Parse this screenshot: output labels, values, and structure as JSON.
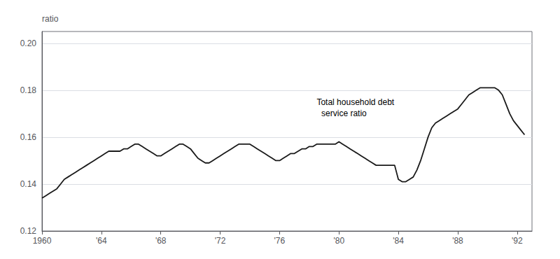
{
  "chart_data": {
    "type": "line",
    "title": "",
    "ylabel": "ratio",
    "annotation": {
      "text": "Total household debt\n  service ratio",
      "x": 1978.5,
      "y": 0.1725
    },
    "color": "#1a1a1a",
    "grid": true,
    "xlim": [
      1960,
      1993
    ],
    "ylim": [
      0.12,
      0.205
    ],
    "xticks": [
      1960,
      {
        "value": 1964,
        "label": "'64"
      },
      {
        "value": 1968,
        "label": "'68"
      },
      {
        "value": 1972,
        "label": "'72"
      },
      {
        "value": 1976,
        "label": "'76"
      },
      {
        "value": 1980,
        "label": "'80"
      },
      {
        "value": 1984,
        "label": "'84"
      },
      {
        "value": 1988,
        "label": "'88"
      },
      {
        "value": 1992,
        "label": "'92"
      }
    ],
    "yticks": [
      0.12,
      0.14,
      0.16,
      0.18,
      {
        "value": 0.2,
        "label": "0.20"
      }
    ],
    "x": [
      1960,
      1960.25,
      1960.5,
      1960.75,
      1961,
      1961.25,
      1961.5,
      1961.75,
      1962,
      1962.25,
      1962.5,
      1962.75,
      1963,
      1963.25,
      1963.5,
      1963.75,
      1964,
      1964.25,
      1964.5,
      1964.75,
      1965,
      1965.25,
      1965.5,
      1965.75,
      1966,
      1966.25,
      1966.5,
      1966.75,
      1967,
      1967.25,
      1967.5,
      1967.75,
      1968,
      1968.25,
      1968.5,
      1968.75,
      1969,
      1969.25,
      1969.5,
      1969.75,
      1970,
      1970.25,
      1970.5,
      1970.75,
      1971,
      1971.25,
      1971.5,
      1971.75,
      1972,
      1972.25,
      1972.5,
      1972.75,
      1973,
      1973.25,
      1973.5,
      1973.75,
      1974,
      1974.25,
      1974.5,
      1974.75,
      1975,
      1975.25,
      1975.5,
      1975.75,
      1976,
      1976.25,
      1976.5,
      1976.75,
      1977,
      1977.25,
      1977.5,
      1977.75,
      1978,
      1978.25,
      1978.5,
      1978.75,
      1979,
      1979.25,
      1979.5,
      1979.75,
      1980,
      1980.25,
      1980.5,
      1980.75,
      1981,
      1981.25,
      1981.5,
      1981.75,
      1982,
      1982.25,
      1982.5,
      1982.75,
      1983,
      1983.25,
      1983.5,
      1983.75,
      1984,
      1984.25,
      1984.5,
      1984.75,
      1985,
      1985.25,
      1985.5,
      1985.75,
      1986,
      1986.25,
      1986.5,
      1986.75,
      1987,
      1987.25,
      1987.5,
      1987.75,
      1988,
      1988.25,
      1988.5,
      1988.75,
      1989,
      1989.25,
      1989.5,
      1989.75,
      1990,
      1990.25,
      1990.5,
      1990.75,
      1991,
      1991.25,
      1991.5,
      1991.75,
      1992,
      1992.25,
      1992.5
    ],
    "values": [
      0.134,
      0.135,
      0.136,
      0.137,
      0.138,
      0.14,
      0.142,
      0.143,
      0.144,
      0.145,
      0.146,
      0.147,
      0.148,
      0.149,
      0.15,
      0.151,
      0.152,
      0.153,
      0.154,
      0.154,
      0.154,
      0.154,
      0.155,
      0.155,
      0.156,
      0.157,
      0.157,
      0.156,
      0.155,
      0.154,
      0.153,
      0.152,
      0.152,
      0.153,
      0.154,
      0.155,
      0.156,
      0.157,
      0.157,
      0.156,
      0.155,
      0.153,
      0.151,
      0.15,
      0.149,
      0.149,
      0.15,
      0.151,
      0.152,
      0.153,
      0.154,
      0.155,
      0.156,
      0.157,
      0.157,
      0.157,
      0.157,
      0.156,
      0.155,
      0.154,
      0.153,
      0.152,
      0.151,
      0.15,
      0.15,
      0.151,
      0.152,
      0.153,
      0.153,
      0.154,
      0.155,
      0.155,
      0.156,
      0.156,
      0.157,
      0.157,
      0.157,
      0.157,
      0.157,
      0.157,
      0.158,
      0.157,
      0.156,
      0.155,
      0.154,
      0.153,
      0.152,
      0.151,
      0.15,
      0.149,
      0.148,
      0.148,
      0.148,
      0.148,
      0.148,
      0.148,
      0.142,
      0.141,
      0.141,
      0.142,
      0.143,
      0.146,
      0.15,
      0.155,
      0.16,
      0.164,
      0.166,
      0.167,
      0.168,
      0.169,
      0.17,
      0.171,
      0.172,
      0.174,
      0.176,
      0.178,
      0.179,
      0.18,
      0.181,
      0.181,
      0.181,
      0.181,
      0.181,
      0.18,
      0.178,
      0.174,
      0.17,
      0.167,
      0.165,
      0.163,
      0.161
    ]
  }
}
